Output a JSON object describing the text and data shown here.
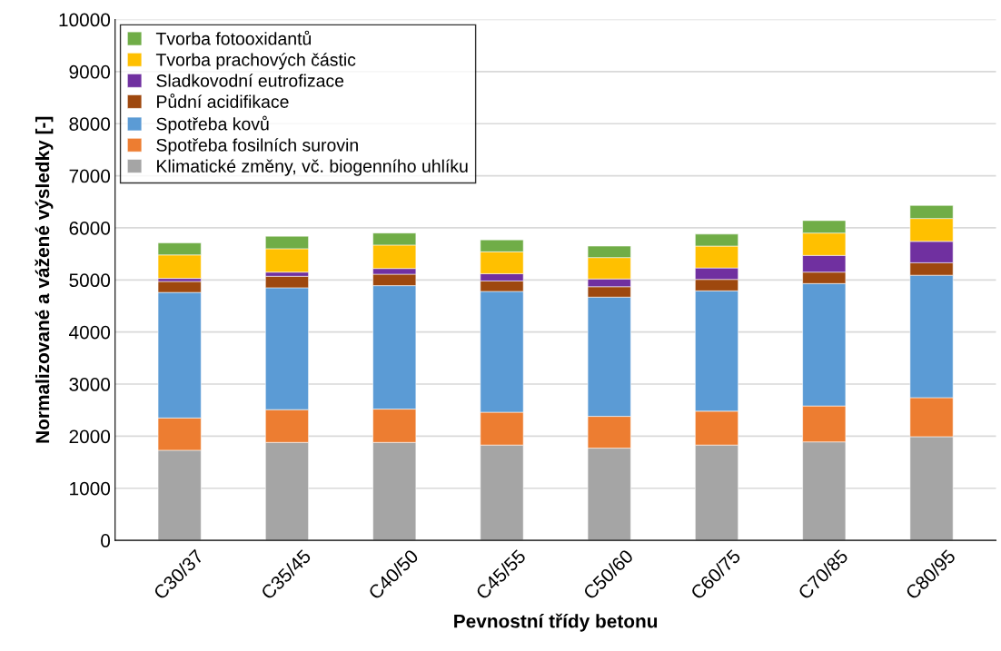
{
  "chart_data": {
    "type": "bar",
    "stacked": true,
    "xlabel": "Pevnostní třídy betonu",
    "ylabel": "Normalizované a vážené výsledky [-]",
    "categories": [
      "C30/37",
      "C35/45",
      "C40/50",
      "C45/55",
      "C50/60",
      "C60/75",
      "C70/85",
      "C80/95"
    ],
    "series": [
      {
        "name": "Klimatické změny, vč. biogenního uhlíku",
        "color": "#a5a5a5",
        "values": [
          1730,
          1880,
          1880,
          1830,
          1770,
          1830,
          1890,
          1990
        ]
      },
      {
        "name": "Spotřeba fosilních surovin",
        "color": "#ed7d31",
        "values": [
          620,
          630,
          640,
          630,
          610,
          650,
          690,
          750
        ]
      },
      {
        "name": "Spotřeba kovů",
        "color": "#5b9bd5",
        "values": [
          2410,
          2340,
          2370,
          2320,
          2290,
          2310,
          2350,
          2350
        ]
      },
      {
        "name": "Půdní acidifikace",
        "color": "#9e480e",
        "values": [
          210,
          220,
          220,
          200,
          200,
          220,
          220,
          240
        ]
      },
      {
        "name": "Sladkovodní eutrofizace",
        "color": "#7030a0",
        "values": [
          60,
          80,
          110,
          140,
          150,
          220,
          320,
          410
        ]
      },
      {
        "name": "Tvorba prachových částic",
        "color": "#ffc000",
        "values": [
          450,
          450,
          450,
          420,
          410,
          420,
          430,
          440
        ]
      },
      {
        "name": "Tvorba fotooxidantů",
        "color": "#70ad47",
        "values": [
          230,
          240,
          230,
          230,
          220,
          230,
          240,
          250
        ]
      }
    ],
    "ylim": [
      0,
      10000
    ],
    "yticks": [
      0,
      1000,
      2000,
      3000,
      4000,
      5000,
      6000,
      7000,
      8000,
      9000,
      10000
    ],
    "grid": "y",
    "legend": "top left"
  }
}
